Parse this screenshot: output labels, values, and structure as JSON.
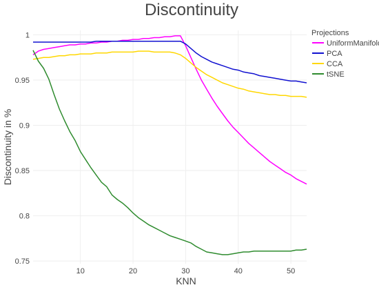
{
  "chart_data": {
    "type": "line",
    "title": "Discontinuity",
    "xlabel": "KNN",
    "ylabel": "Discontinuity in %",
    "xlim": [
      1,
      53
    ],
    "ylim": [
      0.747,
      1.005
    ],
    "x_ticks": [
      10,
      20,
      30,
      40,
      50
    ],
    "x_tick_labels": [
      "10",
      "20",
      "30",
      "40",
      "50"
    ],
    "y_ticks": [
      0.75,
      0.8,
      0.85,
      0.9,
      0.95,
      1.0
    ],
    "y_tick_labels": [
      "0.75",
      "0.8",
      "0.85",
      "0.9",
      "0.95",
      "1"
    ],
    "grid": true,
    "legend": {
      "title": "Projections",
      "position": "top-right"
    },
    "series": [
      {
        "name": "UniformManifold",
        "color": "#ff00ff",
        "x": [
          1,
          2,
          3,
          4,
          5,
          6,
          7,
          8,
          9,
          10,
          11,
          12,
          13,
          14,
          15,
          16,
          17,
          18,
          19,
          20,
          21,
          22,
          23,
          24,
          25,
          26,
          27,
          28,
          29,
          30,
          31,
          32,
          33,
          34,
          35,
          36,
          37,
          38,
          39,
          40,
          41,
          42,
          43,
          44,
          45,
          46,
          47,
          48,
          49,
          50,
          51,
          52,
          53
        ],
        "y": [
          0.978,
          0.982,
          0.984,
          0.985,
          0.986,
          0.987,
          0.988,
          0.989,
          0.989,
          0.99,
          0.99,
          0.991,
          0.991,
          0.992,
          0.992,
          0.993,
          0.993,
          0.994,
          0.994,
          0.995,
          0.995,
          0.996,
          0.996,
          0.997,
          0.997,
          0.998,
          0.998,
          0.999,
          0.999,
          0.988,
          0.975,
          0.962,
          0.95,
          0.94,
          0.93,
          0.921,
          0.913,
          0.905,
          0.898,
          0.892,
          0.886,
          0.88,
          0.875,
          0.87,
          0.865,
          0.86,
          0.856,
          0.852,
          0.848,
          0.845,
          0.841,
          0.838,
          0.835
        ]
      },
      {
        "name": "PCA",
        "color": "#1010d0",
        "x": [
          1,
          2,
          3,
          4,
          5,
          6,
          7,
          8,
          9,
          10,
          11,
          12,
          13,
          14,
          15,
          16,
          17,
          18,
          19,
          20,
          21,
          22,
          23,
          24,
          25,
          26,
          27,
          28,
          29,
          30,
          31,
          32,
          33,
          34,
          35,
          36,
          37,
          38,
          39,
          40,
          41,
          42,
          43,
          44,
          45,
          46,
          47,
          48,
          49,
          50,
          51,
          52,
          53
        ],
        "y": [
          0.992,
          0.992,
          0.992,
          0.992,
          0.992,
          0.992,
          0.992,
          0.992,
          0.992,
          0.992,
          0.992,
          0.992,
          0.993,
          0.993,
          0.993,
          0.993,
          0.993,
          0.993,
          0.993,
          0.993,
          0.993,
          0.993,
          0.993,
          0.993,
          0.993,
          0.993,
          0.993,
          0.993,
          0.993,
          0.99,
          0.985,
          0.98,
          0.976,
          0.973,
          0.97,
          0.968,
          0.966,
          0.964,
          0.962,
          0.961,
          0.959,
          0.958,
          0.957,
          0.955,
          0.954,
          0.953,
          0.952,
          0.951,
          0.95,
          0.949,
          0.949,
          0.948,
          0.947
        ]
      },
      {
        "name": "CCA",
        "color": "#ffd700",
        "x": [
          1,
          2,
          3,
          4,
          5,
          6,
          7,
          8,
          9,
          10,
          11,
          12,
          13,
          14,
          15,
          16,
          17,
          18,
          19,
          20,
          21,
          22,
          23,
          24,
          25,
          26,
          27,
          28,
          29,
          30,
          31,
          32,
          33,
          34,
          35,
          36,
          37,
          38,
          39,
          40,
          41,
          42,
          43,
          44,
          45,
          46,
          47,
          48,
          49,
          50,
          51,
          52,
          53
        ],
        "y": [
          0.973,
          0.974,
          0.975,
          0.975,
          0.976,
          0.977,
          0.977,
          0.978,
          0.978,
          0.979,
          0.979,
          0.979,
          0.98,
          0.98,
          0.98,
          0.981,
          0.981,
          0.981,
          0.981,
          0.981,
          0.982,
          0.982,
          0.982,
          0.981,
          0.981,
          0.981,
          0.981,
          0.98,
          0.978,
          0.974,
          0.969,
          0.964,
          0.96,
          0.956,
          0.953,
          0.95,
          0.947,
          0.945,
          0.943,
          0.941,
          0.94,
          0.938,
          0.937,
          0.936,
          0.935,
          0.934,
          0.934,
          0.933,
          0.933,
          0.932,
          0.932,
          0.932,
          0.931
        ]
      },
      {
        "name": "tSNE",
        "color": "#2e8b2e",
        "x": [
          1,
          2,
          3,
          4,
          5,
          6,
          7,
          8,
          9,
          10,
          11,
          12,
          13,
          14,
          15,
          16,
          17,
          18,
          19,
          20,
          21,
          22,
          23,
          24,
          25,
          26,
          27,
          28,
          29,
          30,
          31,
          32,
          33,
          34,
          35,
          36,
          37,
          38,
          39,
          40,
          41,
          42,
          43,
          44,
          45,
          46,
          47,
          48,
          49,
          50,
          51,
          52,
          53
        ],
        "y": [
          0.983,
          0.971,
          0.963,
          0.951,
          0.934,
          0.918,
          0.905,
          0.893,
          0.883,
          0.871,
          0.862,
          0.853,
          0.845,
          0.837,
          0.832,
          0.823,
          0.818,
          0.814,
          0.809,
          0.803,
          0.798,
          0.794,
          0.79,
          0.787,
          0.784,
          0.781,
          0.778,
          0.776,
          0.774,
          0.772,
          0.77,
          0.766,
          0.763,
          0.76,
          0.759,
          0.758,
          0.757,
          0.757,
          0.758,
          0.759,
          0.76,
          0.76,
          0.761,
          0.761,
          0.761,
          0.761,
          0.761,
          0.761,
          0.761,
          0.761,
          0.762,
          0.762,
          0.763
        ]
      }
    ]
  }
}
